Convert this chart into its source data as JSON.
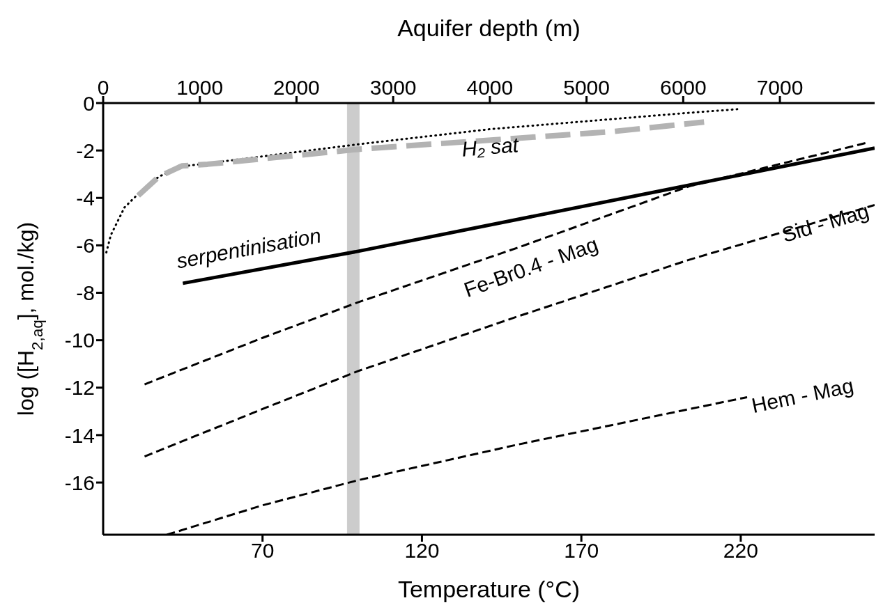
{
  "chart_data": {
    "type": "line",
    "xlabel": "Temperature (°C)",
    "ylabel": "log ([H$_{2,aq}$], mol./kg)",
    "x2label": "Aquifer depth (m)",
    "xlim": [
      20,
      262
    ],
    "xticks": [
      70,
      120,
      170,
      220
    ],
    "x2lim": [
      0,
      7980
    ],
    "x2ticks": [
      0,
      1000,
      2000,
      3000,
      4000,
      5000,
      6000,
      7000
    ],
    "ylim": [
      -18.2,
      0
    ],
    "yticks": [
      0,
      -2,
      -4,
      -6,
      -8,
      -10,
      -12,
      -14,
      -16
    ],
    "bands": [
      {
        "axis": "x",
        "from": 96.6,
        "to": 100.3,
        "color": "#cccccc"
      }
    ],
    "series": [
      {
        "name": "H₂ sat",
        "color": "#000000",
        "line_style": "dotted",
        "x": [
          21,
          22.4,
          26.7,
          31.0,
          37.5,
          44.7,
          50.5,
          99.9,
          141.4,
          202.0,
          218.9
        ],
        "values": [
          -6.3,
          -5.57,
          -4.4,
          -3.83,
          -3.1,
          -2.67,
          -2.58,
          -1.74,
          -1.1,
          -0.43,
          -0.26
        ]
      },
      {
        "color": "#b3b3b3",
        "line_style": "dashed",
        "x": [
          31,
          37.5,
          44.7,
          52.7,
          100,
          180,
          208.5
        ],
        "values": [
          -3.9,
          -3.1,
          -2.65,
          -2.58,
          -1.95,
          -1.2,
          -0.8
        ]
      },
      {
        "name": "serpentinisation",
        "color": "#000000",
        "line_style": "solid",
        "x": [
          45,
          100,
          262
        ],
        "values": [
          -7.6,
          -6.25,
          -1.9
        ]
      },
      {
        "name": "Fe-Br0.4 - Mag",
        "color": "#000000",
        "line_style": "dashed",
        "x": [
          33,
          70,
          100,
          150,
          204,
          259.4
        ],
        "values": [
          -11.86,
          -9.9,
          -8.4,
          -6.1,
          -3.5,
          -1.68
        ]
      },
      {
        "name": "Sid - Mag",
        "color": "#000000",
        "line_style": "dashed",
        "x": [
          33,
          70,
          100,
          150,
          204,
          262
        ],
        "values": [
          -14.9,
          -12.9,
          -11.3,
          -9.0,
          -6.6,
          -4.3
        ]
      },
      {
        "name": "Hem - Mag",
        "color": "#000000",
        "line_style": "dashed",
        "x": [
          40,
          70,
          100,
          150,
          222
        ],
        "values": [
          -18.2,
          -16.96,
          -15.9,
          -14.4,
          -12.4
        ]
      }
    ]
  }
}
